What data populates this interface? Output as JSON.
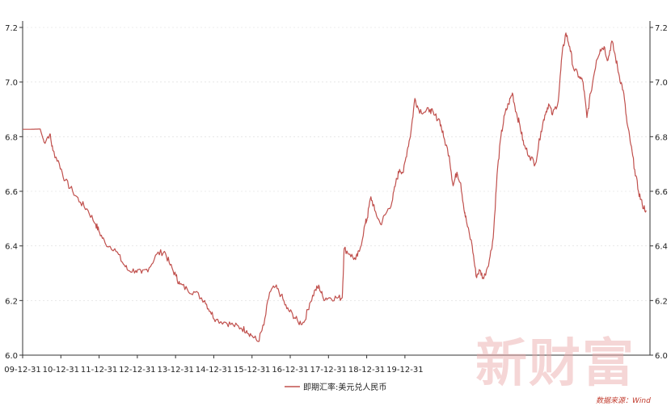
{
  "chart_data": {
    "type": "line",
    "title": "",
    "xlabel": "",
    "ylabel": "",
    "x_ticks": [
      "09-12-31",
      "10-12-31",
      "11-12-31",
      "12-12-31",
      "13-12-31",
      "14-12-31",
      "15-12-31",
      "16-12-31",
      "17-12-31",
      "18-12-31",
      "19-12-31"
    ],
    "ylim": [
      6.0,
      7.2
    ],
    "y_ticks": [
      6.0,
      6.2,
      6.4,
      6.6,
      6.8,
      7.0,
      7.2
    ],
    "y_tick_labels": [
      "6.0",
      "6.2",
      "6.4",
      "6.6",
      "6.8",
      "7.0",
      "7.2"
    ],
    "grid": "horizontal-dotted",
    "legend_position": "bottom-center",
    "series": [
      {
        "name": "即期汇率:美元兑人民币",
        "color": "#c0504d",
        "points": [
          [
            2009.99,
            6.827
          ],
          [
            2010.2,
            6.827
          ],
          [
            2010.45,
            6.828
          ],
          [
            2010.55,
            6.78
          ],
          [
            2010.7,
            6.81
          ],
          [
            2010.78,
            6.75
          ],
          [
            2010.95,
            6.7
          ],
          [
            2011.1,
            6.64
          ],
          [
            2011.3,
            6.6
          ],
          [
            2011.5,
            6.56
          ],
          [
            2011.7,
            6.53
          ],
          [
            2011.9,
            6.48
          ],
          [
            2012.0,
            6.45
          ],
          [
            2012.15,
            6.41
          ],
          [
            2012.4,
            6.39
          ],
          [
            2012.6,
            6.34
          ],
          [
            2012.75,
            6.31
          ],
          [
            2012.95,
            6.31
          ],
          [
            2013.1,
            6.3
          ],
          [
            2013.3,
            6.32
          ],
          [
            2013.5,
            6.37
          ],
          [
            2013.7,
            6.38
          ],
          [
            2013.85,
            6.33
          ],
          [
            2014.0,
            6.29
          ],
          [
            2014.1,
            6.26
          ],
          [
            2014.3,
            6.24
          ],
          [
            2014.5,
            6.23
          ],
          [
            2014.75,
            6.2
          ],
          [
            2014.9,
            6.16
          ],
          [
            2015.05,
            6.13
          ],
          [
            2015.3,
            6.12
          ],
          [
            2015.5,
            6.11
          ],
          [
            2015.7,
            6.1
          ],
          [
            2015.85,
            6.09
          ],
          [
            2016.0,
            6.07
          ],
          [
            2016.15,
            6.05
          ],
          [
            2016.3,
            6.11
          ],
          [
            2016.45,
            6.23
          ],
          [
            2016.6,
            6.25
          ],
          [
            2016.75,
            6.22
          ],
          [
            2016.9,
            6.17
          ],
          [
            2017.05,
            6.15
          ],
          [
            2017.2,
            6.12
          ],
          [
            2017.35,
            6.12
          ],
          [
            2017.5,
            6.19
          ],
          [
            2017.65,
            6.24
          ],
          [
            2017.75,
            6.25
          ],
          [
            2017.85,
            6.21
          ],
          [
            2018.0,
            6.21
          ],
          [
            2018.2,
            6.21
          ],
          [
            2018.35,
            6.21
          ],
          [
            2018.4,
            6.39
          ],
          [
            2018.55,
            6.37
          ],
          [
            2018.7,
            6.35
          ],
          [
            2018.8,
            6.38
          ],
          [
            2018.95,
            6.48
          ],
          [
            2019.0,
            6.5
          ],
          [
            2019.1,
            6.58
          ],
          [
            2019.2,
            6.53
          ],
          [
            2019.35,
            6.48
          ],
          [
            2019.5,
            6.52
          ],
          [
            2019.65,
            6.56
          ],
          [
            2019.75,
            6.63
          ],
          [
            2019.85,
            6.68
          ],
          [
            2019.95,
            6.67
          ],
          [
            2020.05,
            6.75
          ],
          [
            2020.15,
            6.82
          ],
          [
            2020.25,
            6.94
          ],
          [
            2020.35,
            6.9
          ],
          [
            2020.5,
            6.89
          ],
          [
            2020.65,
            6.9
          ],
          [
            2020.75,
            6.88
          ],
          [
            2020.9,
            6.86
          ],
          [
            2021.0,
            6.8
          ],
          [
            2021.15,
            6.73
          ],
          [
            2021.25,
            6.62
          ],
          [
            2021.35,
            6.67
          ],
          [
            2021.45,
            6.63
          ],
          [
            2021.55,
            6.52
          ],
          [
            2021.6,
            6.49
          ],
          [
            2021.75,
            6.4
          ],
          [
            2021.85,
            6.29
          ],
          [
            2021.95,
            6.31
          ],
          [
            2022.05,
            6.28
          ],
          [
            2022.2,
            6.35
          ],
          [
            2022.3,
            6.43
          ],
          [
            2022.4,
            6.66
          ],
          [
            2022.5,
            6.8
          ],
          [
            2022.6,
            6.88
          ],
          [
            2022.7,
            6.92
          ],
          [
            2022.8,
            6.96
          ],
          [
            2022.9,
            6.89
          ],
          [
            2023.0,
            6.84
          ],
          [
            2023.1,
            6.77
          ],
          [
            2023.25,
            6.73
          ],
          [
            2023.4,
            6.7
          ],
          [
            2023.55,
            6.82
          ],
          [
            2023.65,
            6.88
          ],
          [
            2023.75,
            6.92
          ],
          [
            2023.85,
            6.88
          ],
          [
            2024.0,
            6.93
          ],
          [
            2024.1,
            7.1
          ],
          [
            2024.2,
            7.18
          ],
          [
            2024.3,
            7.13
          ],
          [
            2024.4,
            7.05
          ],
          [
            2024.55,
            7.02
          ],
          [
            2024.65,
            7.0
          ],
          [
            2024.75,
            6.87
          ],
          [
            2024.85,
            6.96
          ],
          [
            2025.0,
            7.08
          ],
          [
            2025.1,
            7.12
          ],
          [
            2025.2,
            7.13
          ],
          [
            2025.3,
            7.08
          ],
          [
            2025.4,
            7.15
          ],
          [
            2025.5,
            7.09
          ],
          [
            2025.6,
            7.02
          ],
          [
            2025.7,
            6.97
          ],
          [
            2025.8,
            6.85
          ],
          [
            2025.9,
            6.77
          ],
          [
            2026.0,
            6.68
          ],
          [
            2026.1,
            6.6
          ],
          [
            2026.2,
            6.55
          ],
          [
            2026.3,
            6.53
          ]
        ]
      }
    ]
  },
  "legend": {
    "label": "即期汇率:美元兑人民币"
  },
  "source": {
    "text": "数据来源：Wind"
  },
  "watermark": {
    "text": "新财富"
  },
  "colors": {
    "line": "#c0504d",
    "axis": "#333333",
    "grid": "#d9d9d9"
  }
}
